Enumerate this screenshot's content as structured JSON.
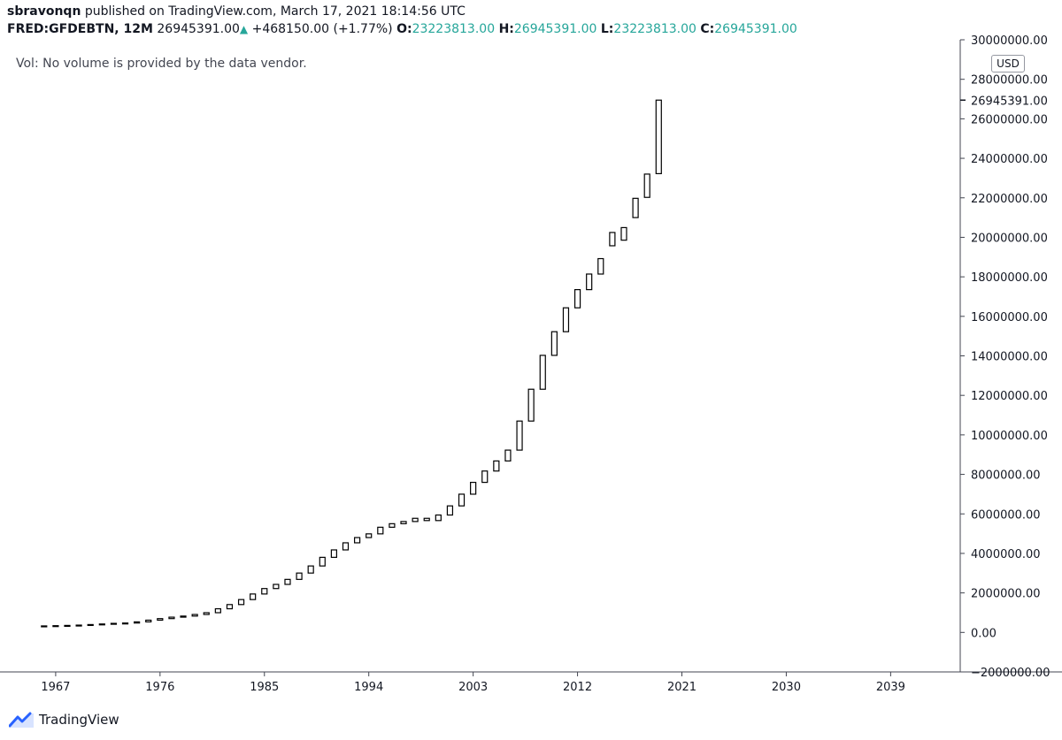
{
  "header": {
    "user": "sbravonqn",
    "published_text": "published on TradingView.com, March 17, 2021 18:14:56 UTC",
    "symbol": "FRED:GFDEBTN, 12M",
    "last": "26945391.00",
    "change": "+468150.00 (+1.77%)",
    "o_label": "O:",
    "o_value": "23223813.00",
    "h_label": "H:",
    "h_value": "26945391.00",
    "l_label": "L:",
    "l_value": "23223813.00",
    "c_label": "C:",
    "c_value": "26945391.00"
  },
  "volume_note": "Vol: No volume is provided by the data vendor.",
  "currency_badge": "USD",
  "brand": "TradingView",
  "colors": {
    "up": "#26a69a",
    "axis": "#434651",
    "candle": "#000000"
  },
  "chart_data": {
    "type": "candlestick",
    "interval": "12M",
    "xlim": [
      1962.2,
      2045.0
    ],
    "ylim": [
      -2000000,
      30000000
    ],
    "x_ticks": [
      1967,
      1976,
      1985,
      1994,
      2003,
      2012,
      2021,
      2030,
      2039
    ],
    "y_ticks": [
      -2000000,
      0,
      2000000,
      4000000,
      6000000,
      8000000,
      10000000,
      12000000,
      14000000,
      16000000,
      18000000,
      20000000,
      22000000,
      24000000,
      26000000,
      28000000,
      30000000
    ],
    "y_tick_labels": [
      "−2000000.00",
      "0.00",
      "2000000.00",
      "4000000.00",
      "6000000.00",
      "8000000.00",
      "10000000.00",
      "12000000.00",
      "14000000.00",
      "16000000.00",
      "18000000.00",
      "20000000.00",
      "22000000.00",
      "24000000.00",
      "26000000.00",
      "28000000.00",
      "30000000.00"
    ],
    "last_price_label": "26945391.00",
    "last_price": 26945391,
    "series": [
      {
        "x": 1966,
        "open": 320000,
        "close": 329000
      },
      {
        "x": 1967,
        "open": 329000,
        "close": 341000
      },
      {
        "x": 1968,
        "open": 341000,
        "close": 354000
      },
      {
        "x": 1969,
        "open": 354000,
        "close": 370000
      },
      {
        "x": 1970,
        "open": 370000,
        "close": 398000
      },
      {
        "x": 1971,
        "open": 398000,
        "close": 427000
      },
      {
        "x": 1972,
        "open": 427000,
        "close": 458000
      },
      {
        "x": 1973,
        "open": 458000,
        "close": 475000
      },
      {
        "x": 1974,
        "open": 475000,
        "close": 533000
      },
      {
        "x": 1975,
        "open": 533000,
        "close": 620000
      },
      {
        "x": 1976,
        "open": 620000,
        "close": 699000
      },
      {
        "x": 1977,
        "open": 699000,
        "close": 772000
      },
      {
        "x": 1978,
        "open": 772000,
        "close": 827000
      },
      {
        "x": 1979,
        "open": 827000,
        "close": 908000
      },
      {
        "x": 1980,
        "open": 908000,
        "close": 998000
      },
      {
        "x": 1981,
        "open": 998000,
        "close": 1197000
      },
      {
        "x": 1982,
        "open": 1197000,
        "close": 1410000
      },
      {
        "x": 1983,
        "open": 1410000,
        "close": 1663000
      },
      {
        "x": 1984,
        "open": 1663000,
        "close": 1945000
      },
      {
        "x": 1985,
        "open": 1945000,
        "close": 2220000
      },
      {
        "x": 1986,
        "open": 2220000,
        "close": 2431000
      },
      {
        "x": 1987,
        "open": 2431000,
        "close": 2684000
      },
      {
        "x": 1988,
        "open": 2684000,
        "close": 3005000
      },
      {
        "x": 1989,
        "open": 3005000,
        "close": 3364000
      },
      {
        "x": 1990,
        "open": 3364000,
        "close": 3801000
      },
      {
        "x": 1991,
        "open": 3801000,
        "close": 4177000
      },
      {
        "x": 1992,
        "open": 4177000,
        "close": 4536000
      },
      {
        "x": 1993,
        "open": 4536000,
        "close": 4801000
      },
      {
        "x": 1994,
        "open": 4801000,
        "close": 4989000
      },
      {
        "x": 1995,
        "open": 4989000,
        "close": 5324000
      },
      {
        "x": 1996,
        "open": 5324000,
        "close": 5503000
      },
      {
        "x": 1997,
        "open": 5503000,
        "close": 5614000
      },
      {
        "x": 1998,
        "open": 5614000,
        "close": 5776000
      },
      {
        "x": 1999,
        "open": 5776000,
        "close": 5662000
      },
      {
        "x": 2000,
        "open": 5662000,
        "close": 5943000
      },
      {
        "x": 2001,
        "open": 5943000,
        "close": 6405000
      },
      {
        "x": 2002,
        "open": 6405000,
        "close": 6998000
      },
      {
        "x": 2003,
        "open": 6998000,
        "close": 7596000
      },
      {
        "x": 2004,
        "open": 7596000,
        "close": 8170000
      },
      {
        "x": 2005,
        "open": 8170000,
        "close": 8680000
      },
      {
        "x": 2006,
        "open": 8680000,
        "close": 9229000
      },
      {
        "x": 2007,
        "open": 9229000,
        "close": 10700000
      },
      {
        "x": 2008,
        "open": 10700000,
        "close": 12311000
      },
      {
        "x": 2009,
        "open": 12311000,
        "close": 14025000
      },
      {
        "x": 2010,
        "open": 14025000,
        "close": 15223000
      },
      {
        "x": 2011,
        "open": 15223000,
        "close": 16432000
      },
      {
        "x": 2012,
        "open": 16432000,
        "close": 17352000
      },
      {
        "x": 2013,
        "open": 17352000,
        "close": 18141000
      },
      {
        "x": 2014,
        "open": 18141000,
        "close": 18922000
      },
      {
        "x": 2015,
        "open": 19573000,
        "close": 20245000
      },
      {
        "x": 2016,
        "open": 19856000,
        "close": 20493000
      },
      {
        "x": 2017,
        "open": 21000000,
        "close": 21974000
      },
      {
        "x": 2018,
        "open": 22023000,
        "close": 23201000
      },
      {
        "x": 2019,
        "open": 23223813,
        "close": 26945391
      }
    ]
  }
}
